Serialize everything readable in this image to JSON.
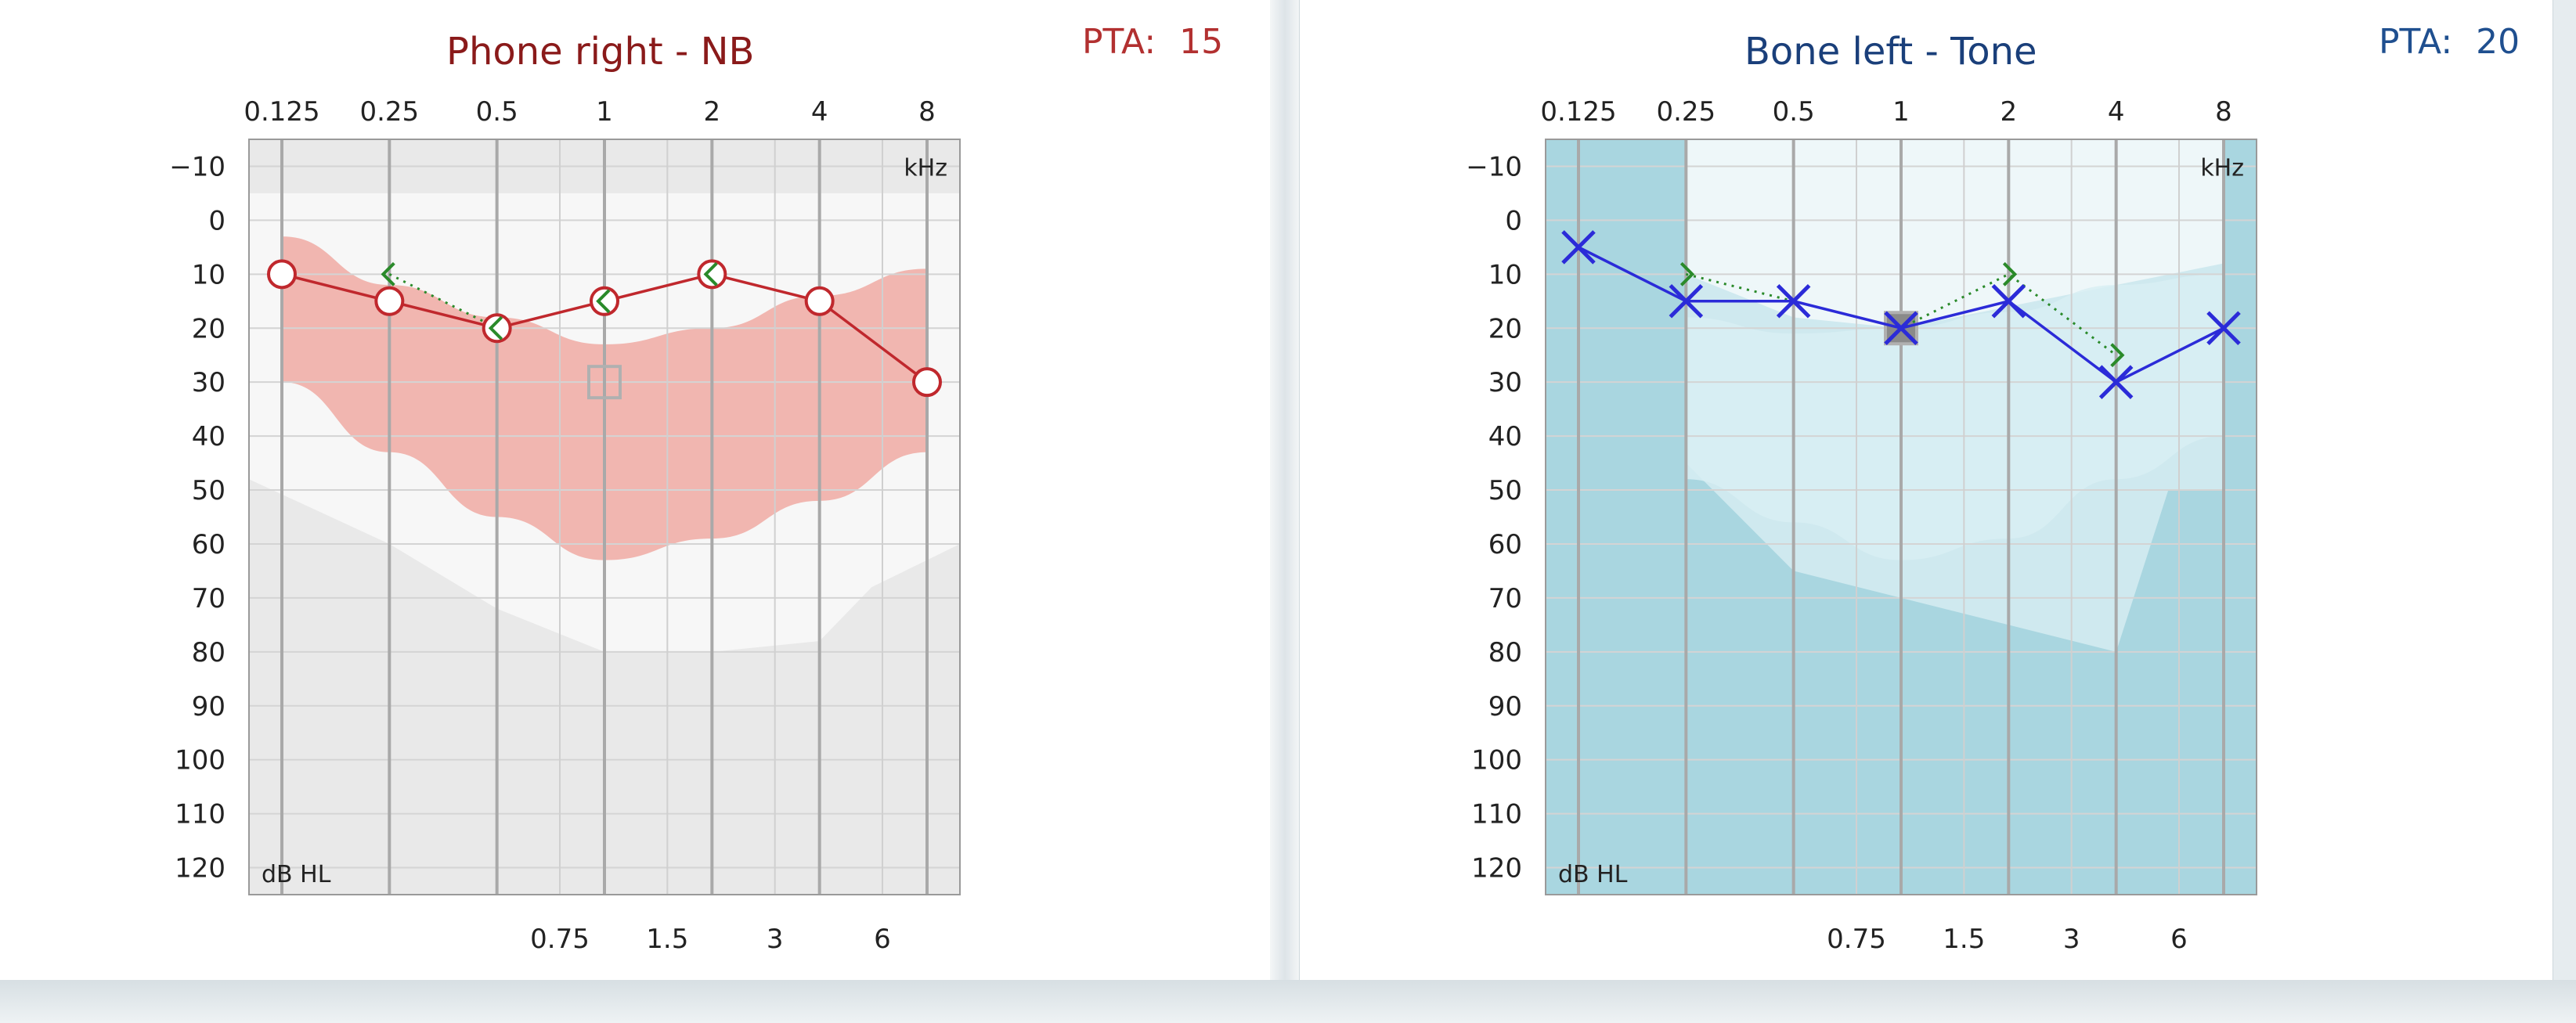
{
  "colors": {
    "right_ear": "#c0282d",
    "left_ear": "#2b2bd8",
    "masked": "#2a8a2a",
    "left_title": "#8a1a1a",
    "right_title": "#1a3f7a",
    "pta_left": "#b23030",
    "pta_right": "#1f4f8f",
    "speech_banana_right": "#f1b6b0",
    "bone_background": "#a9d6e0"
  },
  "chart_data": [
    {
      "type": "line",
      "title": "Phone right - NB",
      "pta_label": "PTA:",
      "pta_value": "15",
      "unit_x": "kHz",
      "unit_y": "dB HL",
      "x_top_ticks": [
        "0.125",
        "0.25",
        "0.5",
        "1",
        "2",
        "4",
        "8"
      ],
      "x_bottom_ticks": [
        "0.75",
        "1.5",
        "3",
        "6"
      ],
      "y_ticks": [
        "−10",
        "0",
        "10",
        "20",
        "30",
        "40",
        "50",
        "60",
        "70",
        "80",
        "90",
        "100",
        "110",
        "120"
      ],
      "ylim": [
        -15,
        125
      ],
      "grid": true,
      "symbol": "circle",
      "series": [
        {
          "x": [
            0.125,
            0.25,
            0.5,
            1,
            2,
            4,
            8
          ],
          "y": [
            10,
            15,
            20,
            15,
            10,
            15,
            30
          ]
        }
      ],
      "masked_markers": [
        {
          "x": 0.25,
          "y": 10,
          "shape": "bracket-left"
        },
        {
          "x": 0.5,
          "y": 20,
          "shape": "bracket-left"
        },
        {
          "x": 1,
          "y": 15,
          "shape": "bracket-left"
        },
        {
          "x": 2,
          "y": 10,
          "shape": "bracket-left"
        }
      ],
      "masked_line": [
        [
          0.25,
          10
        ],
        [
          0.5,
          20
        ]
      ],
      "square_marker": {
        "x": 1,
        "y": 30
      },
      "speech_banana": {
        "upper": [
          [
            0.125,
            3
          ],
          [
            0.25,
            12
          ],
          [
            0.5,
            18
          ],
          [
            1,
            23
          ],
          [
            2,
            20
          ],
          [
            4,
            14
          ],
          [
            8,
            9
          ]
        ],
        "lower": [
          [
            0.125,
            30
          ],
          [
            0.25,
            43
          ],
          [
            0.5,
            55
          ],
          [
            1,
            63
          ],
          [
            2,
            59
          ],
          [
            4,
            52
          ],
          [
            8,
            43
          ]
        ]
      }
    },
    {
      "type": "line",
      "title": "Bone left - Tone",
      "pta_label": "PTA:",
      "pta_value": "20",
      "unit_x": "kHz",
      "unit_y": "dB HL",
      "x_top_ticks": [
        "0.125",
        "0.25",
        "0.5",
        "1",
        "2",
        "4",
        "8"
      ],
      "x_bottom_ticks": [
        "0.75",
        "1.5",
        "3",
        "6"
      ],
      "y_ticks": [
        "−10",
        "0",
        "10",
        "20",
        "30",
        "40",
        "50",
        "60",
        "70",
        "80",
        "90",
        "100",
        "110",
        "120"
      ],
      "ylim": [
        -15,
        125
      ],
      "grid": true,
      "symbol": "cross",
      "series": [
        {
          "x": [
            0.125,
            0.25,
            0.5,
            1,
            2,
            4,
            8
          ],
          "y": [
            5,
            15,
            15,
            20,
            15,
            30,
            20
          ]
        }
      ],
      "masked_markers": [
        {
          "x": 0.25,
          "y": 10,
          "shape": "bracket-right"
        },
        {
          "x": 2,
          "y": 10,
          "shape": "bracket-right"
        },
        {
          "x": 4,
          "y": 25,
          "shape": "bracket-right"
        }
      ],
      "masked_line": [
        [
          0.25,
          10
        ],
        [
          0.5,
          15
        ],
        [
          1,
          20
        ],
        [
          2,
          10
        ],
        [
          4,
          25
        ]
      ],
      "square_marker": {
        "x": 1,
        "y": 20
      },
      "speech_banana": {
        "upper": [
          [
            0.25,
            18
          ],
          [
            0.5,
            21
          ],
          [
            1,
            20
          ],
          [
            2,
            17
          ],
          [
            4,
            12
          ],
          [
            8,
            10
          ]
        ],
        "lower": [
          [
            0.25,
            48
          ],
          [
            0.5,
            56
          ],
          [
            1,
            63
          ],
          [
            2,
            59
          ],
          [
            4,
            48
          ],
          [
            8,
            40
          ]
        ]
      }
    }
  ]
}
